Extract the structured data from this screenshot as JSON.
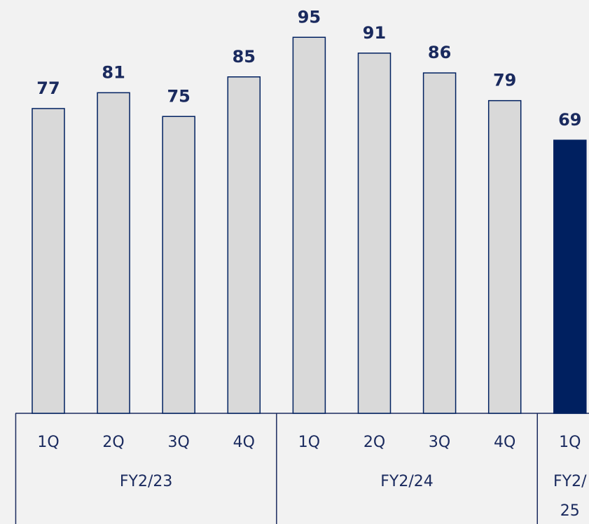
{
  "chart_data": {
    "type": "bar",
    "groups": [
      {
        "label": "FY2/23",
        "categories": [
          "1Q",
          "2Q",
          "3Q",
          "4Q"
        ],
        "values": [
          77,
          81,
          75,
          85
        ],
        "color": "#d9d9d9"
      },
      {
        "label": "FY2/24",
        "categories": [
          "1Q",
          "2Q",
          "3Q",
          "4Q"
        ],
        "values": [
          95,
          91,
          86,
          79
        ],
        "color": "#d9d9d9"
      },
      {
        "label": "FY2/25",
        "categories": [
          "1Q"
        ],
        "values": [
          69
        ],
        "color": "#002060"
      }
    ],
    "border_color": "#002060",
    "ylim": [
      0,
      100
    ]
  }
}
